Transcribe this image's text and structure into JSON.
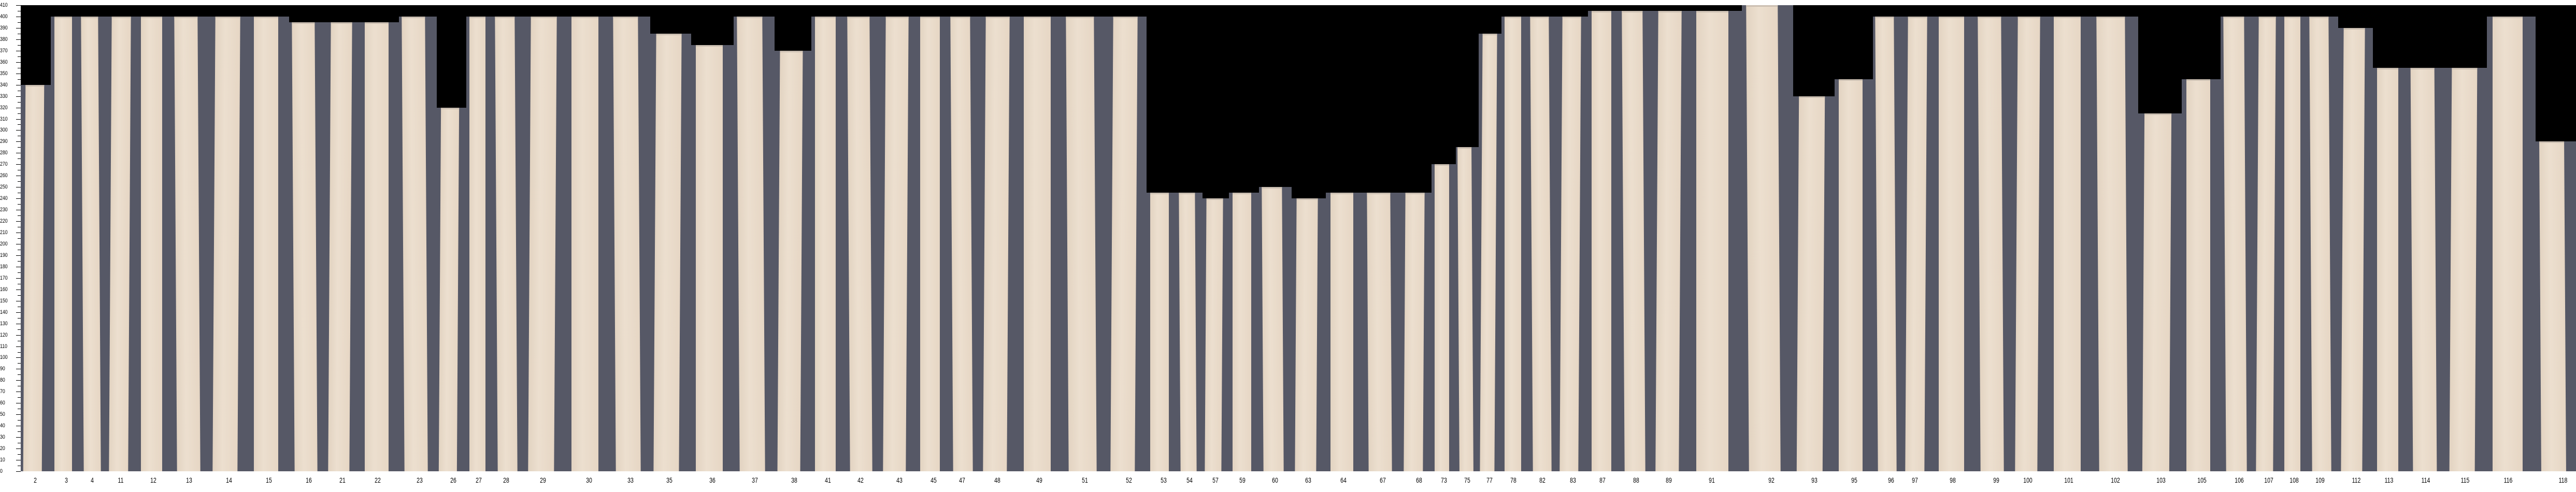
{
  "chart_data": {
    "type": "bar",
    "title": "",
    "xlabel": "",
    "ylabel": "",
    "ylim": [
      0,
      410
    ],
    "ytick_step": 10,
    "grid": false,
    "colors": {
      "background": "#000000",
      "panel": "#565866",
      "plank": "#e6d6c4"
    },
    "categories": [
      "2",
      "3",
      "4",
      "11",
      "12",
      "13",
      "14",
      "15",
      "16",
      "21",
      "22",
      "23",
      "26",
      "27",
      "28",
      "29",
      "30",
      "33",
      "35",
      "36",
      "37",
      "38",
      "41",
      "42",
      "43",
      "45",
      "47",
      "48",
      "49",
      "51",
      "52",
      "53",
      "54",
      "57",
      "59",
      "60",
      "63",
      "64",
      "67",
      "68",
      "73",
      "75",
      "77",
      "78",
      "82",
      "83",
      "87",
      "88",
      "89",
      "91",
      "92",
      "93",
      "95",
      "96",
      "97",
      "98",
      "99",
      "100",
      "101",
      "102",
      "103",
      "105",
      "106",
      "107",
      "108",
      "109",
      "112",
      "113",
      "114",
      "115",
      "116",
      "118"
    ],
    "values": [
      340,
      400,
      400,
      400,
      400,
      400,
      400,
      400,
      395,
      395,
      395,
      400,
      320,
      400,
      400,
      400,
      400,
      400,
      385,
      375,
      400,
      370,
      400,
      400,
      400,
      400,
      400,
      400,
      400,
      400,
      400,
      245,
      245,
      240,
      245,
      250,
      240,
      245,
      245,
      245,
      270,
      285,
      385,
      400,
      400,
      400,
      405,
      405,
      405,
      405,
      410,
      330,
      345,
      400,
      400,
      400,
      400,
      400,
      400,
      400,
      315,
      345,
      400,
      400,
      400,
      400,
      390,
      355,
      355,
      355,
      400,
      290
    ]
  }
}
